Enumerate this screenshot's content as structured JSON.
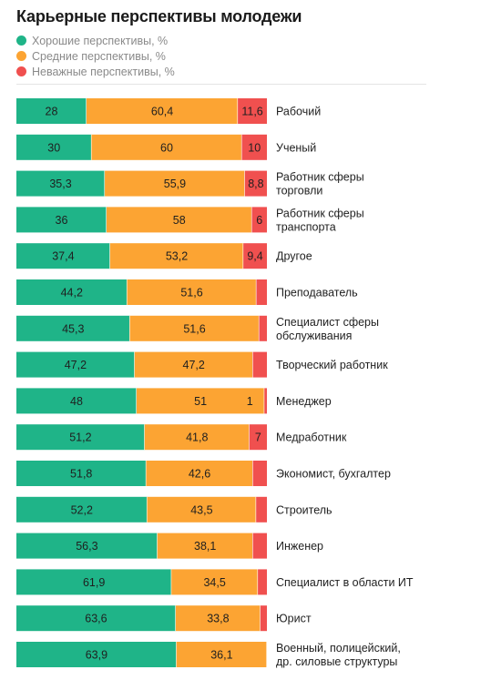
{
  "chart_data": {
    "type": "bar",
    "orientation": "horizontal",
    "stacked": true,
    "title": "Карьерные перспективы молодежи",
    "categories": [
      [
        "Рабочий"
      ],
      [
        "Ученый"
      ],
      [
        "Работник сферы",
        "торговли"
      ],
      [
        "Работник сферы",
        "транспорта"
      ],
      [
        "Другое"
      ],
      [
        "Преподаватель"
      ],
      [
        "Специалист сферы",
        "обслуживания"
      ],
      [
        "Творческий работник"
      ],
      [
        "Менеджер"
      ],
      [
        "Медработник"
      ],
      [
        "Экономист, бухгалтер"
      ],
      [
        "Строитель"
      ],
      [
        "Инженер"
      ],
      [
        "Специалист в области ИТ"
      ],
      [
        "Юрист"
      ],
      [
        "Военный, полицейский,",
        "др. силовые структуры"
      ]
    ],
    "series": [
      {
        "name": "Хорошие перспективы, %",
        "color": "#1fb488",
        "values": [
          28,
          30,
          35.3,
          36,
          37.4,
          44.2,
          45.3,
          47.2,
          48,
          51.2,
          51.8,
          52.2,
          56.3,
          61.9,
          63.6,
          63.9
        ],
        "labels": [
          "28",
          "30",
          "35,3",
          "36",
          "37,4",
          "44,2",
          "45,3",
          "47,2",
          "48",
          "51,2",
          "51,8",
          "52,2",
          "56,3",
          "61,9",
          "63,6",
          "63,9"
        ]
      },
      {
        "name": "Средние перспективы, %",
        "color": "#fca433",
        "values": [
          60.4,
          60,
          55.9,
          58,
          53.2,
          51.6,
          51.6,
          47.2,
          51,
          41.8,
          42.6,
          43.5,
          38.1,
          34.5,
          33.8,
          36.1
        ],
        "labels": [
          "60,4",
          "60",
          "55,9",
          "58",
          "53,2",
          "51,6",
          "51,6",
          "47,2",
          "51",
          "41,8",
          "42,6",
          "43,5",
          "38,1",
          "34,5",
          "33,8",
          "36,1"
        ]
      },
      {
        "name": "Неважные перспективы, %",
        "color": "#f0504f",
        "values": [
          11.6,
          10,
          8.8,
          6,
          9.4,
          4.2,
          3.1,
          5.6,
          1,
          7,
          5.6,
          4.3,
          5.6,
          3.6,
          2.6,
          0
        ],
        "labels": [
          "11,6",
          "10",
          "8,8",
          "6",
          "9,4",
          "",
          "",
          "",
          "",
          "7",
          "",
          "",
          "",
          "",
          "",
          ""
        ]
      }
    ],
    "extra_labels": [
      {
        "row": 8,
        "text": "1",
        "anchor": "orange-end"
      }
    ],
    "xlim": [
      0,
      100
    ],
    "legend": "top-left",
    "grid": false
  }
}
